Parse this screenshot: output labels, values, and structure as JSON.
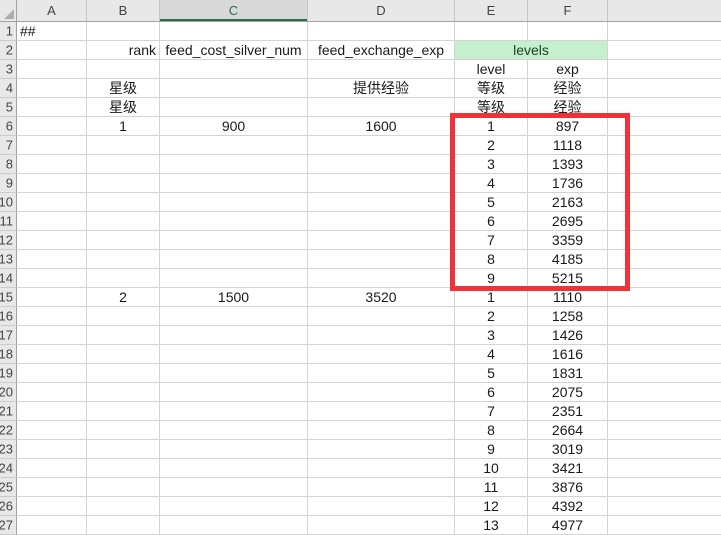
{
  "sheet": {
    "columns": [
      {
        "label": "A"
      },
      {
        "label": "B"
      },
      {
        "label": "C"
      },
      {
        "label": "D"
      },
      {
        "label": "E"
      },
      {
        "label": "F"
      },
      {
        "label": ""
      }
    ],
    "selected_column": "C",
    "row_count": 27,
    "cells": [
      {
        "row": 1,
        "col": "A",
        "text": "##",
        "align": "left"
      },
      {
        "row": 2,
        "col": "B",
        "text": "rank",
        "align": "right"
      },
      {
        "row": 2,
        "col": "C",
        "text": "feed_cost_silver_num"
      },
      {
        "row": 2,
        "col": "D",
        "text": "feed_exchange_exp"
      },
      {
        "row": 2,
        "col": "E:F",
        "text": "levels",
        "style": "good"
      },
      {
        "row": 3,
        "col": "E",
        "text": "level"
      },
      {
        "row": 3,
        "col": "F",
        "text": "exp"
      },
      {
        "row": 4,
        "col": "B",
        "text": "星级"
      },
      {
        "row": 4,
        "col": "D",
        "text": "提供经验"
      },
      {
        "row": 4,
        "col": "E",
        "text": "等级"
      },
      {
        "row": 4,
        "col": "F",
        "text": "经验"
      },
      {
        "row": 5,
        "col": "B",
        "text": "星级"
      },
      {
        "row": 5,
        "col": "E",
        "text": "等级"
      },
      {
        "row": 5,
        "col": "F",
        "text": "经验"
      },
      {
        "row": 6,
        "col": "B",
        "text": "1"
      },
      {
        "row": 6,
        "col": "C",
        "text": "900"
      },
      {
        "row": 6,
        "col": "D",
        "text": "1600"
      },
      {
        "row": 6,
        "col": "E",
        "text": "1"
      },
      {
        "row": 6,
        "col": "F",
        "text": "897"
      },
      {
        "row": 7,
        "col": "E",
        "text": "2"
      },
      {
        "row": 7,
        "col": "F",
        "text": "1118"
      },
      {
        "row": 8,
        "col": "E",
        "text": "3"
      },
      {
        "row": 8,
        "col": "F",
        "text": "1393"
      },
      {
        "row": 9,
        "col": "E",
        "text": "4"
      },
      {
        "row": 9,
        "col": "F",
        "text": "1736"
      },
      {
        "row": 10,
        "col": "E",
        "text": "5"
      },
      {
        "row": 10,
        "col": "F",
        "text": "2163"
      },
      {
        "row": 11,
        "col": "E",
        "text": "6"
      },
      {
        "row": 11,
        "col": "F",
        "text": "2695"
      },
      {
        "row": 12,
        "col": "E",
        "text": "7"
      },
      {
        "row": 12,
        "col": "F",
        "text": "3359"
      },
      {
        "row": 13,
        "col": "E",
        "text": "8"
      },
      {
        "row": 13,
        "col": "F",
        "text": "4185"
      },
      {
        "row": 14,
        "col": "E",
        "text": "9"
      },
      {
        "row": 14,
        "col": "F",
        "text": "5215"
      },
      {
        "row": 15,
        "col": "B",
        "text": "2"
      },
      {
        "row": 15,
        "col": "C",
        "text": "1500"
      },
      {
        "row": 15,
        "col": "D",
        "text": "3520"
      },
      {
        "row": 15,
        "col": "E",
        "text": "1"
      },
      {
        "row": 15,
        "col": "F",
        "text": "1110"
      },
      {
        "row": 16,
        "col": "E",
        "text": "2"
      },
      {
        "row": 16,
        "col": "F",
        "text": "1258"
      },
      {
        "row": 17,
        "col": "E",
        "text": "3"
      },
      {
        "row": 17,
        "col": "F",
        "text": "1426"
      },
      {
        "row": 18,
        "col": "E",
        "text": "4"
      },
      {
        "row": 18,
        "col": "F",
        "text": "1616"
      },
      {
        "row": 19,
        "col": "E",
        "text": "5"
      },
      {
        "row": 19,
        "col": "F",
        "text": "1831"
      },
      {
        "row": 20,
        "col": "E",
        "text": "6"
      },
      {
        "row": 20,
        "col": "F",
        "text": "2075"
      },
      {
        "row": 21,
        "col": "E",
        "text": "7"
      },
      {
        "row": 21,
        "col": "F",
        "text": "2351"
      },
      {
        "row": 22,
        "col": "E",
        "text": "8"
      },
      {
        "row": 22,
        "col": "F",
        "text": "2664"
      },
      {
        "row": 23,
        "col": "E",
        "text": "9"
      },
      {
        "row": 23,
        "col": "F",
        "text": "3019"
      },
      {
        "row": 24,
        "col": "E",
        "text": "10"
      },
      {
        "row": 24,
        "col": "F",
        "text": "3421"
      },
      {
        "row": 25,
        "col": "E",
        "text": "11"
      },
      {
        "row": 25,
        "col": "F",
        "text": "3876"
      },
      {
        "row": 26,
        "col": "E",
        "text": "12"
      },
      {
        "row": 26,
        "col": "F",
        "text": "4392"
      },
      {
        "row": 27,
        "col": "E",
        "text": "13"
      },
      {
        "row": 27,
        "col": "F",
        "text": "4977"
      }
    ]
  },
  "annotation_rectangle": {
    "shape": "rectangle",
    "rows": "6-14",
    "columns": "E-F"
  },
  "colors": {
    "selected_header_green": "#217346",
    "selected_header_bg": "#d9d9d9",
    "header_bg": "#e8e8e8",
    "levels_cell_bg": "#c6efce",
    "levels_cell_text": "#1d4026",
    "annotation_red": "#f03137",
    "gridline": "#d4d4d4"
  }
}
